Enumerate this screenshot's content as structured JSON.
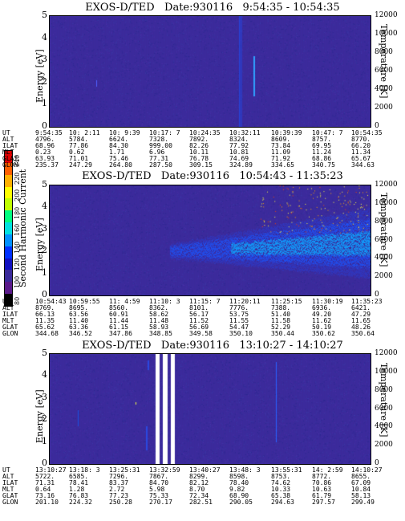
{
  "panels": [
    {
      "title": "EXOS-D/TED   Date:930116   9:54:35 - 10:54:35",
      "ylabel": "Energy [eV]",
      "y2label": "Temperature [K]",
      "eph": {
        "UT": [
          "9:54:35",
          "10: 2:11",
          "10: 9:39",
          "10:17: 7",
          "10:24:35",
          "10:32:11",
          "10:39:39",
          "10:47: 7",
          "10:54:35"
        ],
        "ALT": [
          "4796.",
          "5784.",
          "6624.",
          "7328.",
          "7892.",
          "8324.",
          "8609.",
          "8757.",
          "8770."
        ],
        "ILAT": [
          "68.96",
          "77.86",
          "84.30",
          "999.00",
          "82.26",
          "77.92",
          "73.84",
          "69.95",
          "66.20"
        ],
        "MLT": [
          "0.23",
          "0.62",
          "1.71",
          "6.96",
          "10.11",
          "10.81",
          "11.09",
          "11.24",
          "11.34"
        ],
        "GLAT": [
          "63.93",
          "71.01",
          "75.46",
          "77.31",
          "76.78",
          "74.69",
          "71.92",
          "68.86",
          "65.67"
        ],
        "GLON": [
          "235.37",
          "247.29",
          "264.80",
          "287.50",
          "309.15",
          "324.89",
          "334.65",
          "340.75",
          "344.63"
        ]
      }
    },
    {
      "title": "EXOS-D/TED   Date:930116   10:54:43 - 11:35:23",
      "ylabel": "Energy [eV]",
      "y2label": "Temperature [K]",
      "eph": {
        "UT": [
          "10:54:43",
          "10:59:55",
          "11: 4:59",
          "11:10: 3",
          "11:15: 7",
          "11:20:11",
          "11:25:15",
          "11:30:19",
          "11:35:23"
        ],
        "ALT": [
          "8769.",
          "8695.",
          "8560.",
          "8362.",
          "8101.",
          "7776.",
          "7388.",
          "6936.",
          "6421."
        ],
        "ILAT": [
          "66.13",
          "63.56",
          "60.91",
          "58.62",
          "56.17",
          "53.75",
          "51.40",
          "49.20",
          "47.29"
        ],
        "MLT": [
          "11.35",
          "11.40",
          "11.44",
          "11.48",
          "11.52",
          "11.55",
          "11.58",
          "11.62",
          "11.65"
        ],
        "GLAT": [
          "65.62",
          "63.36",
          "61.15",
          "58.93",
          "56.69",
          "54.47",
          "52.29",
          "50.19",
          "48.26"
        ],
        "GLON": [
          "344.68",
          "346.52",
          "347.86",
          "348.85",
          "349.58",
          "350.10",
          "350.44",
          "350.62",
          "350.64"
        ]
      }
    },
    {
      "title": "EXOS-D/TED   Date:930116   13:10:27 - 14:10:27",
      "ylabel": "Energy [eV]",
      "y2label": "Temperature [K]",
      "eph": {
        "UT": [
          "13:10:27",
          "13:18: 3",
          "13:25:31",
          "13:32:59",
          "13:40:27",
          "13:48: 3",
          "13:55:31",
          "14: 2:59",
          "14:10:27"
        ],
        "ALT": [
          "5722.",
          "6585.",
          "7296.",
          "7867.",
          "8299.",
          "8598.",
          "8753.",
          "8772.",
          "8655."
        ],
        "ILAT": [
          "71.31",
          "78.41",
          "83.37",
          "84.70",
          "82.12",
          "78.40",
          "74.62",
          "70.86",
          "67.09"
        ],
        "MLT": [
          "0.64",
          "1.28",
          "2.72",
          "5.98",
          "8.70",
          "9.82",
          "10.33",
          "10.63",
          "10.84"
        ],
        "GLAT": [
          "73.16",
          "76.83",
          "77.23",
          "75.33",
          "72.34",
          "68.90",
          "65.38",
          "61.79",
          "58.13"
        ],
        "GLON": [
          "201.10",
          "224.32",
          "250.28",
          "270.17",
          "282.51",
          "290.05",
          "294.63",
          "297.57",
          "299.49"
        ]
      }
    }
  ],
  "energy_ticks": [
    "5",
    "4",
    "3",
    "2",
    "1",
    "0"
  ],
  "temp_ticks": [
    "12000",
    "10000",
    "8000",
    "6000",
    "4000",
    "2000",
    "0"
  ],
  "eph_labels": [
    "UT",
    "ALT",
    "ILAT",
    "MLT",
    "GLAT",
    "GLON"
  ],
  "colorbar": {
    "label": "Second Harmonic Current",
    "ticks": [
      "240",
      "220",
      "200",
      "180",
      "160",
      "140",
      "120",
      "100",
      "80"
    ],
    "colors": [
      "#e00000",
      "#ff6000",
      "#ffb000",
      "#ffff00",
      "#c0ff00",
      "#00ff80",
      "#00e0e0",
      "#0090ff",
      "#0030ff",
      "#1010c0",
      "#3a2a9a",
      "#5a1a8a",
      "#000000"
    ]
  },
  "chart_data": [
    {
      "type": "heatmap",
      "title": "EXOS-D/TED   Date:930116   9:54:35 - 10:54:35",
      "xlabel": "",
      "ylabel": "Energy [eV]",
      "ylim": [
        0,
        5
      ],
      "y2label": "Temperature [K]",
      "y2lim": [
        0,
        12000
      ]
    },
    {
      "type": "heatmap",
      "title": "EXOS-D/TED   Date:930116   10:54:43 - 11:35:23",
      "xlabel": "",
      "ylabel": "Energy [eV]",
      "ylim": [
        0,
        5
      ],
      "y2label": "Temperature [K]",
      "y2lim": [
        0,
        12000
      ]
    },
    {
      "type": "heatmap",
      "title": "EXOS-D/TED   Date:930116   13:10:27 - 14:10:27",
      "xlabel": "",
      "ylabel": "Energy [eV]",
      "ylim": [
        0,
        5
      ],
      "y2label": "Temperature [K]",
      "y2lim": [
        0,
        12000
      ]
    }
  ]
}
